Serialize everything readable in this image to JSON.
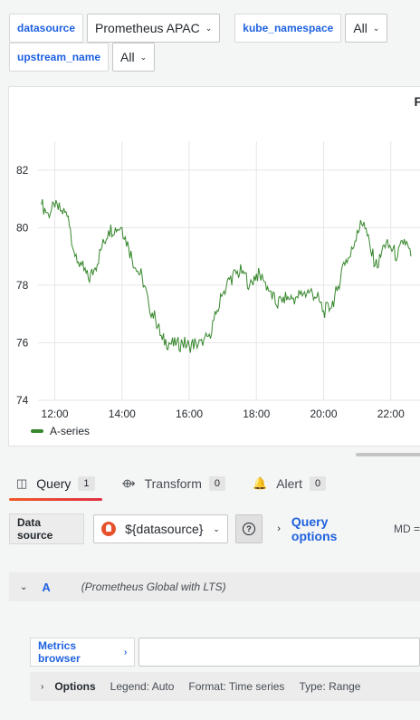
{
  "variables": [
    {
      "label": "datasource",
      "value": "Prometheus APAC"
    },
    {
      "label": "kube_namespace",
      "value": "All"
    },
    {
      "label": "upstream_name",
      "value": "All"
    }
  ],
  "panel": {
    "title_fragment": "F",
    "legend": {
      "name": "A-series",
      "color": "#37872d"
    }
  },
  "chart_data": {
    "type": "line",
    "title": "",
    "x_tick_labels": [
      "12:00",
      "14:00",
      "16:00",
      "18:00",
      "20:00",
      "22:00"
    ],
    "y_tick_labels": [
      "74",
      "76",
      "78",
      "80",
      "82"
    ],
    "ylim": [
      74,
      83
    ],
    "grid": true,
    "legend_placement": "bottom-left",
    "series": [
      {
        "name": "A-series",
        "color": "#37872d",
        "x_hours": [
          11.6,
          11.8,
          12.0,
          12.2,
          12.4,
          12.6,
          12.8,
          13.0,
          13.2,
          13.4,
          13.6,
          13.8,
          14.0,
          14.2,
          14.4,
          14.6,
          14.8,
          15.0,
          15.2,
          15.4,
          15.6,
          15.8,
          16.0,
          16.2,
          16.4,
          16.6,
          16.8,
          17.0,
          17.2,
          17.4,
          17.6,
          17.8,
          18.0,
          18.2,
          18.4,
          18.6,
          18.8,
          19.0,
          19.2,
          19.4,
          19.6,
          19.8,
          20.0,
          20.2,
          20.4,
          20.6,
          20.8,
          21.0,
          21.2,
          21.4,
          21.6,
          21.8,
          22.0,
          22.2,
          22.4,
          22.6
        ],
        "values": [
          80.8,
          80.5,
          80.7,
          80.6,
          80.4,
          79.0,
          78.7,
          78.2,
          78.6,
          79.3,
          79.9,
          80.0,
          80.0,
          79.3,
          78.6,
          78.3,
          77.3,
          76.8,
          76.1,
          76.0,
          75.9,
          76.0,
          75.9,
          76.0,
          75.9,
          76.3,
          77.0,
          77.7,
          78.2,
          78.4,
          78.5,
          78.0,
          78.4,
          78.2,
          77.8,
          77.3,
          77.6,
          77.5,
          77.6,
          77.7,
          77.8,
          77.6,
          77.1,
          77.2,
          77.8,
          78.8,
          79.0,
          79.9,
          80.2,
          79.2,
          78.6,
          79.4,
          79.3,
          79.0,
          79.6,
          79.0
        ]
      }
    ]
  },
  "tabs": [
    {
      "label": "Query",
      "count": "1"
    },
    {
      "label": "Transform",
      "count": "0"
    },
    {
      "label": "Alert",
      "count": "0"
    }
  ],
  "datasource_row": {
    "label": "Data source",
    "picker_value": "${datasource}",
    "help_icon": "question-icon",
    "query_options_label": "Query options",
    "md_text": "MD ="
  },
  "query": {
    "ref_id": "A",
    "datasource_name": "(Prometheus Global with LTS)",
    "metrics_browser_label": "Metrics browser",
    "options_title": "Options",
    "legend": "Legend: Auto",
    "format": "Format: Time series",
    "type": "Type: Range"
  }
}
